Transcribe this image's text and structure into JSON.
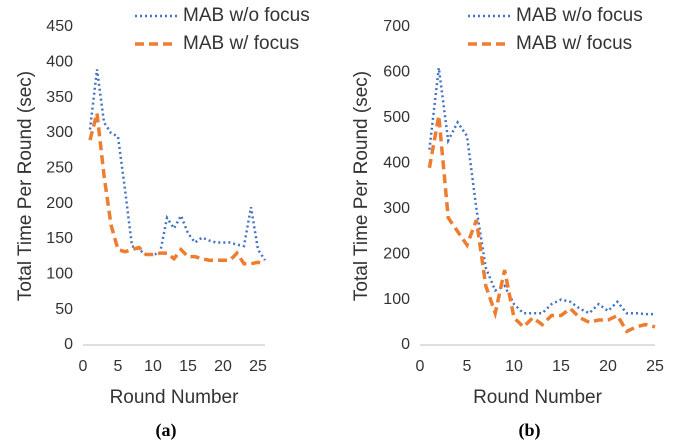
{
  "chart_data": [
    {
      "type": "line",
      "caption": "(a)",
      "x_label": "Round Number",
      "y_label": "Total Time Per Round (sec)",
      "x": [
        1,
        2,
        3,
        4,
        5,
        6,
        7,
        8,
        9,
        10,
        11,
        12,
        13,
        14,
        15,
        16,
        17,
        18,
        19,
        20,
        21,
        22,
        23,
        24,
        25,
        26
      ],
      "series": [
        {
          "name": "MAB w/o focus",
          "color": "#4472c4",
          "dash": "dotted",
          "values": [
            305,
            390,
            315,
            300,
            295,
            220,
            140,
            135,
            128,
            128,
            130,
            180,
            165,
            183,
            158,
            145,
            152,
            148,
            145,
            145,
            145,
            142,
            140,
            195,
            135,
            120
          ]
        },
        {
          "name": "MAB w/ focus",
          "color": "#ed7d31",
          "dash": "dashed",
          "values": [
            290,
            328,
            240,
            170,
            135,
            132,
            135,
            138,
            128,
            128,
            130,
            130,
            122,
            135,
            125,
            125,
            122,
            120,
            120,
            120,
            120,
            130,
            115,
            115,
            117,
            115
          ]
        }
      ],
      "xlim": [
        0,
        26
      ],
      "xticks": [
        0,
        5,
        10,
        15,
        20,
        25
      ],
      "ylim": [
        0,
        450
      ],
      "yticks": [
        0,
        50,
        100,
        150,
        200,
        250,
        300,
        350,
        400,
        450
      ],
      "grid": false
    },
    {
      "type": "line",
      "caption": "(b)",
      "x_label": "Round Number",
      "y_label": "Total Time Per Round (sec)",
      "x": [
        1,
        2,
        3,
        4,
        5,
        6,
        7,
        8,
        9,
        10,
        11,
        12,
        13,
        14,
        15,
        16,
        17,
        18,
        19,
        20,
        21,
        22,
        23,
        24,
        25
      ],
      "series": [
        {
          "name": "MAB w/o focus",
          "color": "#4472c4",
          "dash": "dotted",
          "values": [
            430,
            610,
            450,
            490,
            460,
            300,
            170,
            120,
            130,
            90,
            70,
            70,
            70,
            90,
            100,
            95,
            80,
            70,
            90,
            75,
            95,
            70,
            70,
            68,
            68
          ]
        },
        {
          "name": "MAB w/ focus",
          "color": "#ed7d31",
          "dash": "dashed",
          "values": [
            390,
            505,
            280,
            250,
            220,
            275,
            130,
            70,
            165,
            60,
            40,
            60,
            45,
            65,
            65,
            80,
            60,
            50,
            55,
            55,
            65,
            30,
            40,
            45,
            40
          ]
        }
      ],
      "xlim": [
        0,
        25
      ],
      "xticks": [
        0,
        5,
        10,
        15,
        20,
        25
      ],
      "ylim": [
        0,
        700
      ],
      "yticks": [
        0,
        100,
        200,
        300,
        400,
        500,
        600,
        700
      ],
      "grid": false
    }
  ]
}
